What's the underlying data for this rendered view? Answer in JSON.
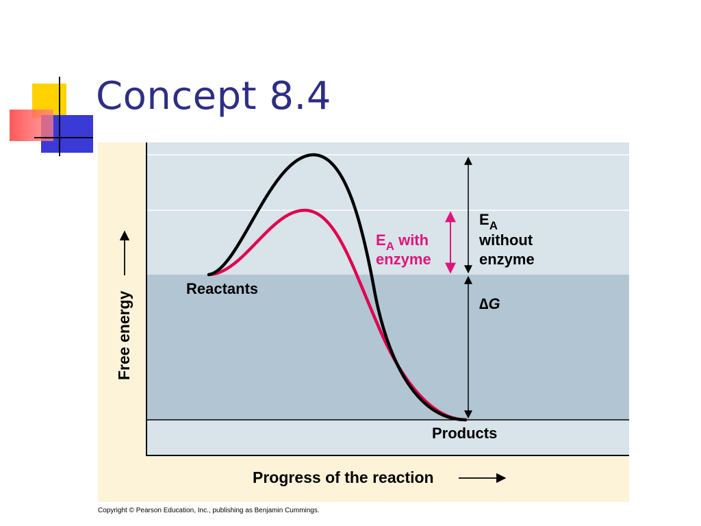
{
  "slide": {
    "title": "Concept 8.4",
    "copyright": "Copyright © Pearson Education, Inc., publishing as Benjamin Cummings."
  },
  "diagram": {
    "y_axis_label": "Free energy",
    "x_axis_label": "Progress of the reaction",
    "labels": {
      "reactants": "Reactants",
      "products": "Products",
      "ea_with_enzyme_line1_main": "E",
      "ea_with_enzyme_line1_sub": "A",
      "ea_with_enzyme_line1_rest": " with",
      "ea_with_enzyme_line2": "enzyme",
      "ea_without_main": "E",
      "ea_without_sub": "A",
      "ea_without_line2": "without",
      "ea_without_line3": "enzyme",
      "delta_symbol": "∆",
      "delta_var": "G"
    },
    "curves": [
      {
        "name": "without enzyme",
        "color": "#000000"
      },
      {
        "name": "with enzyme",
        "color": "#e0004e"
      }
    ],
    "colors": {
      "panel_background": "#fdf3d8",
      "upper_band": "#d8e3ea",
      "middle_band": "#b2c5d3",
      "enzyme_arrow": "#e0147a",
      "title": "#2e2e86"
    }
  }
}
